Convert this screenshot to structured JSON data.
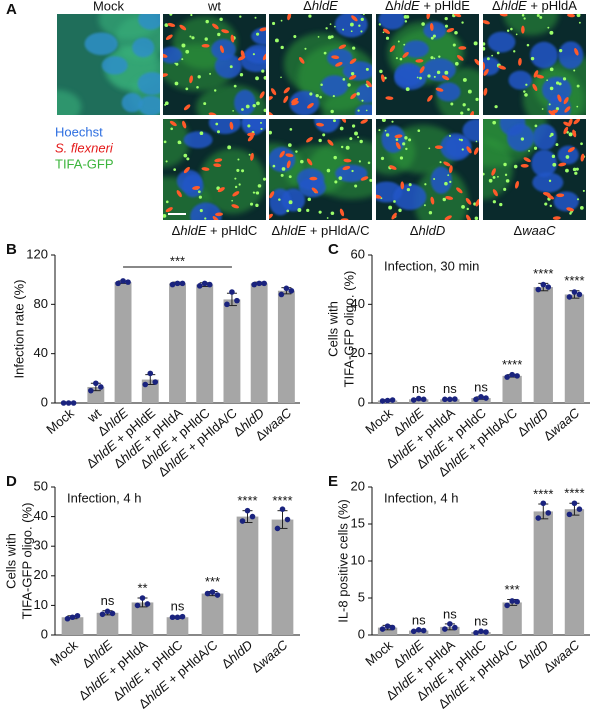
{
  "panel_a": {
    "panel": "A",
    "top_row": [
      "Mock",
      "wt",
      "ΔhldE",
      "ΔhldE + pHldE",
      "ΔhldE + pHldA"
    ],
    "bottom_row": [
      "ΔhldE + pHldC",
      "ΔhldE + pHldA/C",
      "ΔhldD",
      "ΔwaaC"
    ],
    "legend": [
      {
        "name": "Hoechst",
        "color": "#2d6ee0"
      },
      {
        "name": "S. flexneri",
        "color": "#e41a1a"
      },
      {
        "name": "TIFA-GFP",
        "color": "#3cb53c"
      }
    ]
  },
  "chart_data": [
    {
      "type": "bar",
      "panel": "B",
      "ylabel": "Infection rate (%)",
      "categories": [
        "Mock",
        "wt",
        "ΔhldE",
        "ΔhldE + pHldE",
        "ΔhldE + pHldA",
        "ΔhldE + pHldC",
        "ΔhldE + pHldA/C",
        "ΔhldD",
        "ΔwaaC"
      ],
      "values": [
        0,
        13,
        98,
        19,
        97,
        96,
        84,
        97,
        91
      ],
      "errors": [
        0.5,
        3,
        1,
        4,
        1,
        1.5,
        5,
        1,
        2.5
      ],
      "points": [
        [
          0,
          0,
          0
        ],
        [
          10,
          16,
          13
        ],
        [
          97,
          99,
          98
        ],
        [
          15,
          24,
          17
        ],
        [
          96,
          97,
          97
        ],
        [
          95,
          97,
          96
        ],
        [
          80,
          90,
          83
        ],
        [
          96,
          97,
          97
        ],
        [
          88,
          93,
          91
        ]
      ],
      "annotation": "***",
      "ylim": [
        0,
        120
      ],
      "yticks": [
        0,
        40,
        80,
        120
      ],
      "color": "#a6a6a6",
      "point_color": "#1a237e",
      "error_color": "#222"
    },
    {
      "type": "bar",
      "panel": "C",
      "title": "Infection, 30 min",
      "ylabel": [
        "Cells with",
        "TIFA-GFP oligo. (%)"
      ],
      "categories": [
        "Mock",
        "ΔhldE",
        "ΔhldE + pHldA",
        "ΔhldE + pHldC",
        "ΔhldE + pHldA/C",
        "ΔhldD",
        "ΔwaaC"
      ],
      "values": [
        1,
        1.5,
        1.5,
        2,
        11,
        47,
        44
      ],
      "errors": [
        0.3,
        0.3,
        0.2,
        0.5,
        0.5,
        1.5,
        1.5
      ],
      "points": [
        [
          0.8,
          1,
          1.2
        ],
        [
          1.2,
          1.8,
          1.5
        ],
        [
          1.5,
          1.5,
          1.6
        ],
        [
          1.5,
          2.5,
          2
        ],
        [
          10.5,
          11.5,
          11
        ],
        [
          46,
          48,
          47
        ],
        [
          43,
          45,
          44
        ]
      ],
      "significance": [
        null,
        "ns",
        "ns",
        "ns",
        "****",
        "****",
        "****"
      ],
      "ylim": [
        0,
        60
      ],
      "yticks": [
        0,
        20,
        40,
        60
      ],
      "color": "#a6a6a6",
      "point_color": "#1a237e",
      "error_color": "#222"
    },
    {
      "type": "bar",
      "panel": "D",
      "title": "Infection, 4 h",
      "ylabel": [
        "Cells with",
        "TIFA-GFP oligo. (%)"
      ],
      "categories": [
        "Mock",
        "ΔhldE",
        "ΔhldE + pHldA",
        "ΔhldE + pHldC",
        "ΔhldE + pHldA/C",
        "ΔhldD",
        "ΔwaaC"
      ],
      "values": [
        6,
        7.5,
        11,
        6,
        14,
        40,
        39
      ],
      "errors": [
        0.5,
        0.7,
        1.5,
        0.4,
        0.7,
        2,
        3
      ],
      "points": [
        [
          5.5,
          6,
          6.5
        ],
        [
          7,
          8,
          7.3
        ],
        [
          10,
          12.5,
          10.5
        ],
        [
          6,
          6,
          6.2
        ],
        [
          14,
          14.5,
          13.5
        ],
        [
          38.5,
          42,
          40
        ],
        [
          36,
          42.5,
          39
        ]
      ],
      "significance": [
        null,
        "ns",
        "**",
        "ns",
        "***",
        "****",
        "****"
      ],
      "ylim": [
        0,
        50
      ],
      "yticks": [
        0,
        10,
        20,
        30,
        40,
        50
      ],
      "color": "#a6a6a6",
      "point_color": "#1a237e",
      "error_color": "#222"
    },
    {
      "type": "bar",
      "panel": "E",
      "title": "Infection, 4 h",
      "ylabel": "IL-8 positive cells (%)",
      "categories": [
        "Mock",
        "ΔhldE",
        "ΔhldE + pHldA",
        "ΔhldE + pHldC",
        "ΔhldE + pHldA/C",
        "ΔhldD",
        "ΔwaaC"
      ],
      "values": [
        1,
        0.6,
        1.1,
        0.4,
        4.4,
        16.7,
        17
      ],
      "errors": [
        0.3,
        0.1,
        0.4,
        0.1,
        0.4,
        1,
        0.8
      ],
      "points": [
        [
          0.8,
          1.2,
          1
        ],
        [
          0.5,
          0.7,
          0.6
        ],
        [
          0.8,
          1.5,
          1
        ],
        [
          0.3,
          0.5,
          0.4
        ],
        [
          4,
          4.6,
          4.5
        ],
        [
          15.8,
          17.8,
          16.5
        ],
        [
          16.3,
          17.8,
          17
        ]
      ],
      "significance": [
        null,
        "ns",
        "ns",
        "ns",
        "***",
        "****",
        "****"
      ],
      "ylim": [
        0,
        20
      ],
      "yticks": [
        0,
        5,
        10,
        15,
        20
      ],
      "color": "#a6a6a6",
      "point_color": "#1a237e",
      "error_color": "#222"
    }
  ]
}
